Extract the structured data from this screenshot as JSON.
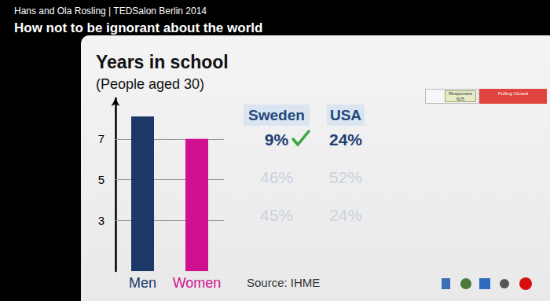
{
  "header": {
    "credit": "Hans and Ola Rosling | TEDSalon Berlin 2014",
    "talk": "How not to be ignorant about the world"
  },
  "chart_data": {
    "type": "bar",
    "title": "Years in school",
    "subtitle": "(People aged 30)",
    "categories": [
      "Men",
      "Women"
    ],
    "values": [
      8.1,
      7.0
    ],
    "colors": [
      "#1b3868",
      "#cf1190"
    ],
    "ylim": [
      0.5,
      9
    ],
    "yticks": [
      3,
      5,
      7
    ],
    "grid": true
  },
  "poll": {
    "columns": [
      "Sweden",
      "USA"
    ],
    "rows": [
      [
        "9%",
        "24%"
      ],
      [
        "46%",
        "52%"
      ],
      [
        "45%",
        "24%"
      ]
    ]
  },
  "source": "Source: IHME",
  "poll_status": {
    "responses_label": "Responses",
    "responses": "625",
    "status": "Polling Closed"
  }
}
